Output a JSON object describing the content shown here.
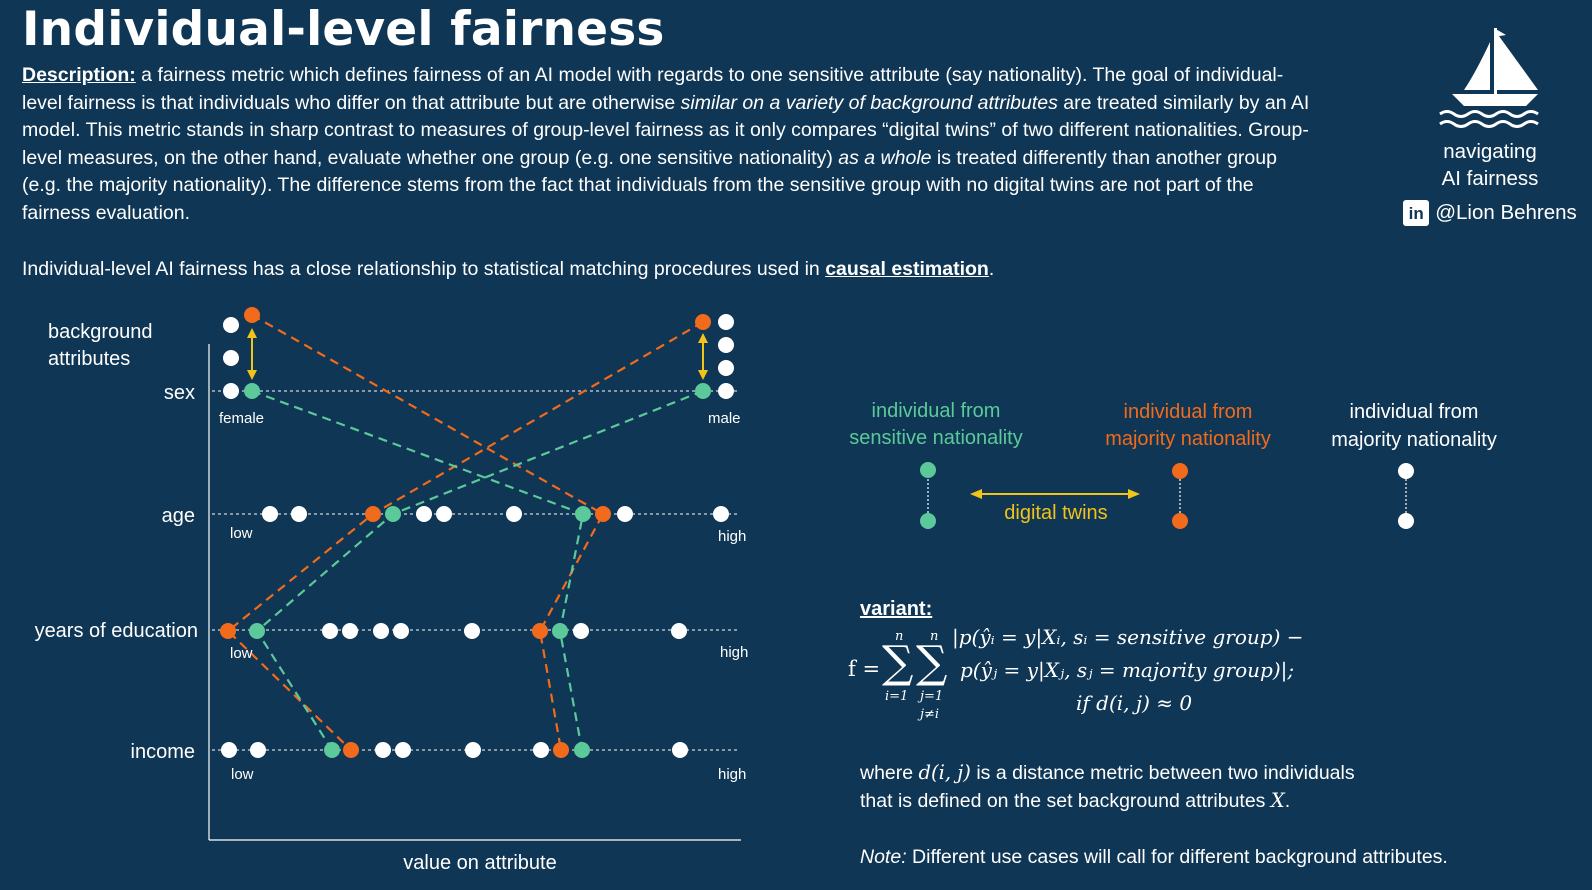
{
  "title": "Individual-level fairness",
  "description": {
    "label": "Description:",
    "p1": " a fairness metric which defines fairness of an AI model with regards to one sensitive attribute (say nationality). The goal of individual-level fairness is that individuals who differ on that attribute but are otherwise ",
    "p1_italic": "similar on a variety of background attributes",
    "p2": " are treated similarly by an AI model. This metric stands in sharp contrast to measures of group-level fairness as it only compares “digital twins” of two different nationalities. Group-level measures, on the other hand, evaluate whether one group (e.g. one sensitive nationality) ",
    "p2_italic": "as a whole",
    "p3": " is treated differently than another group (e.g. the majority nationality). The difference stems from the fact that individuals from the sensitive group with no digital twins are not part of the fairness evaluation."
  },
  "intro2": {
    "text": "Individual-level AI fairness has a close relationship to statistical matching procedures used in ",
    "link": "causal estimation",
    "end": "."
  },
  "brand": {
    "tag_line1": "navigating",
    "tag_line2": "AI fairness",
    "linkedin": "in",
    "handle": "@Lion Behrens"
  },
  "diagram": {
    "header_line1": "background",
    "header_line2": "attributes",
    "x_label": "value on attribute",
    "rows": [
      {
        "name": "sex",
        "low": "female",
        "high": "male"
      },
      {
        "name": "age",
        "low": "low",
        "high": "high"
      },
      {
        "name": "years of education",
        "low": "low",
        "high": "high"
      },
      {
        "name": "income",
        "low": "low",
        "high": "high"
      }
    ]
  },
  "legend": {
    "sensitive_line1": "individual from",
    "sensitive_line2": "sensitive nationality",
    "majority_line1": "individual from",
    "majority_line2": "majority nationality",
    "other_line1": "individual from",
    "other_line2": "majority nationality",
    "twins": "digital twins"
  },
  "colors": {
    "background": "#0f3654",
    "sensitive": "#5cc99a",
    "majority": "#f26a1b",
    "twins": "#f2c318",
    "white": "#ffffff"
  },
  "formula": {
    "variant": "variant:",
    "lhs": "f =",
    "sum_top": "n",
    "sum_i_bottom": "i=1",
    "sum_j_bottom": "j=1",
    "sum_j_cond": "j≠i",
    "line1": "|p(ŷᵢ = y|Xᵢ, sᵢ = sensitive group) −",
    "line2": "p(ŷⱼ = y|Xⱼ, sⱼ = majority group)|;",
    "line3": "if d(i, j) ≈ 0"
  },
  "where": {
    "a": "where ",
    "d": "d(i, j)",
    "b": " is a distance metric between two individuals",
    "c": "that is defined on the set background attributes ",
    "x": "X",
    "e": "."
  },
  "note": {
    "label": "Note:",
    "text": " Different use cases will call for different background attributes."
  }
}
